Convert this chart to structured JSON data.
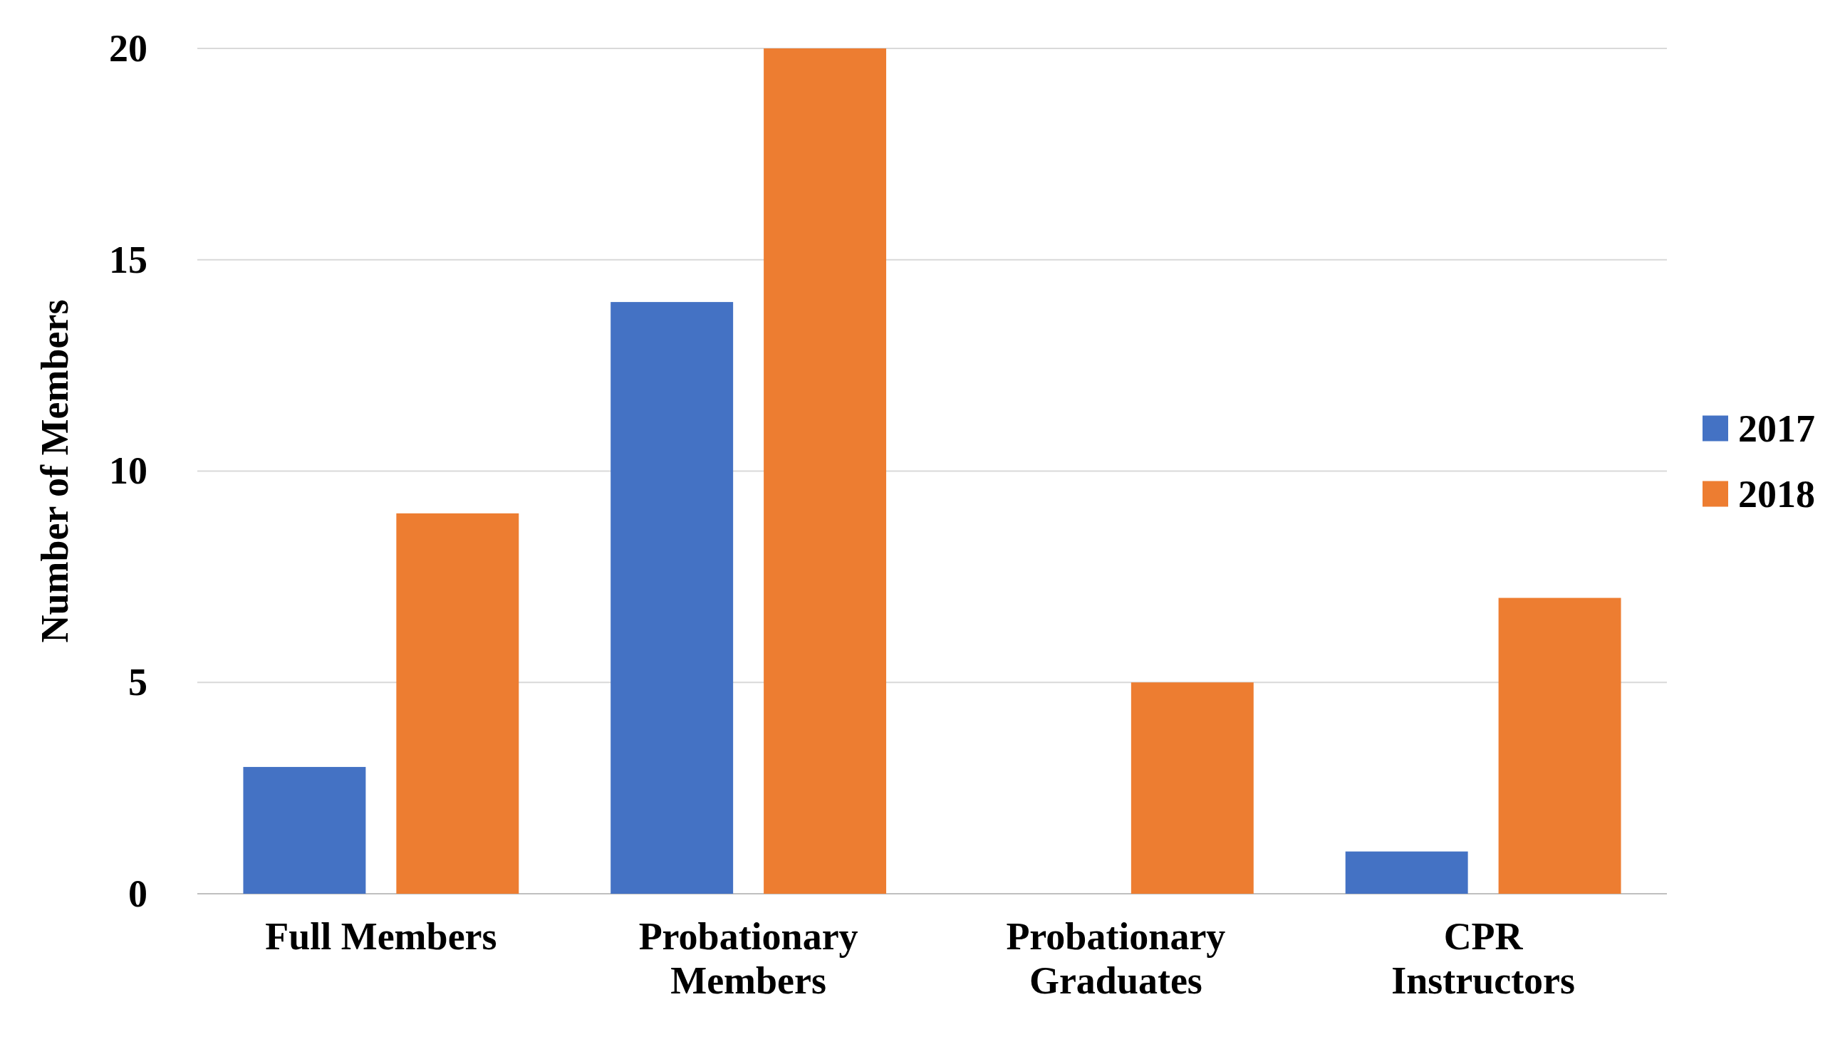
{
  "chart_data": {
    "type": "bar",
    "ylabel": "Number of Members",
    "categories": [
      "Full Members",
      "Probationary Members",
      "Probationary Graduates",
      "CPR Instructors"
    ],
    "series": [
      {
        "name": "2017",
        "color": "#4472c4",
        "values": [
          3,
          14,
          0,
          1
        ]
      },
      {
        "name": "2018",
        "color": "#ed7d31",
        "values": [
          9,
          20,
          5,
          7
        ]
      }
    ],
    "ylim": [
      0,
      20
    ],
    "yticks": [
      0,
      5,
      10,
      15,
      20
    ],
    "grid": "y",
    "legend": "right"
  }
}
